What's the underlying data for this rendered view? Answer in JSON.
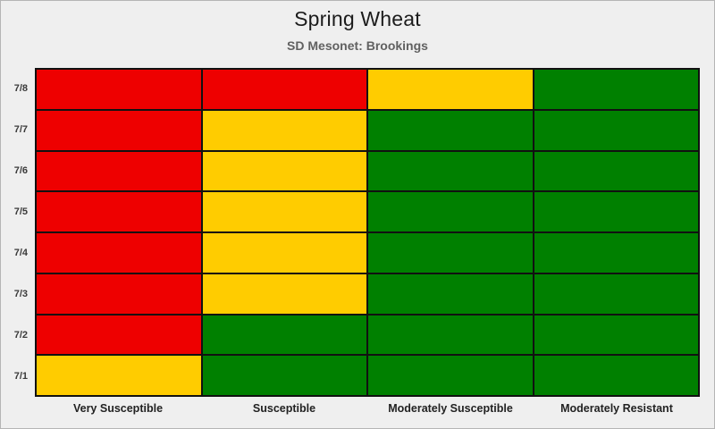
{
  "page": {
    "background_color": "#efefef",
    "frame_border_color": "#b5b5b5"
  },
  "chart_data": {
    "type": "heatmap",
    "title": "Spring Wheat",
    "subtitle": "SD Mesonet: Brookings",
    "ylabel": "",
    "xlabel": "",
    "rows": [
      "7/8",
      "7/7",
      "7/6",
      "7/5",
      "7/4",
      "7/3",
      "7/2",
      "7/1"
    ],
    "columns": [
      "Very Susceptible",
      "Susceptible",
      "Moderately Susceptible",
      "Moderately Resistant"
    ],
    "cells": [
      [
        "red",
        "red",
        "yellow",
        "green"
      ],
      [
        "red",
        "yellow",
        "green",
        "green"
      ],
      [
        "red",
        "yellow",
        "green",
        "green"
      ],
      [
        "red",
        "yellow",
        "green",
        "green"
      ],
      [
        "red",
        "yellow",
        "green",
        "green"
      ],
      [
        "red",
        "yellow",
        "green",
        "green"
      ],
      [
        "red",
        "green",
        "green",
        "green"
      ],
      [
        "yellow",
        "green",
        "green",
        "green"
      ]
    ],
    "palette": {
      "red": "#ee0000",
      "yellow": "#ffcc00",
      "green": "#008000"
    },
    "grid_line_color": "#111111",
    "legend": "none"
  }
}
